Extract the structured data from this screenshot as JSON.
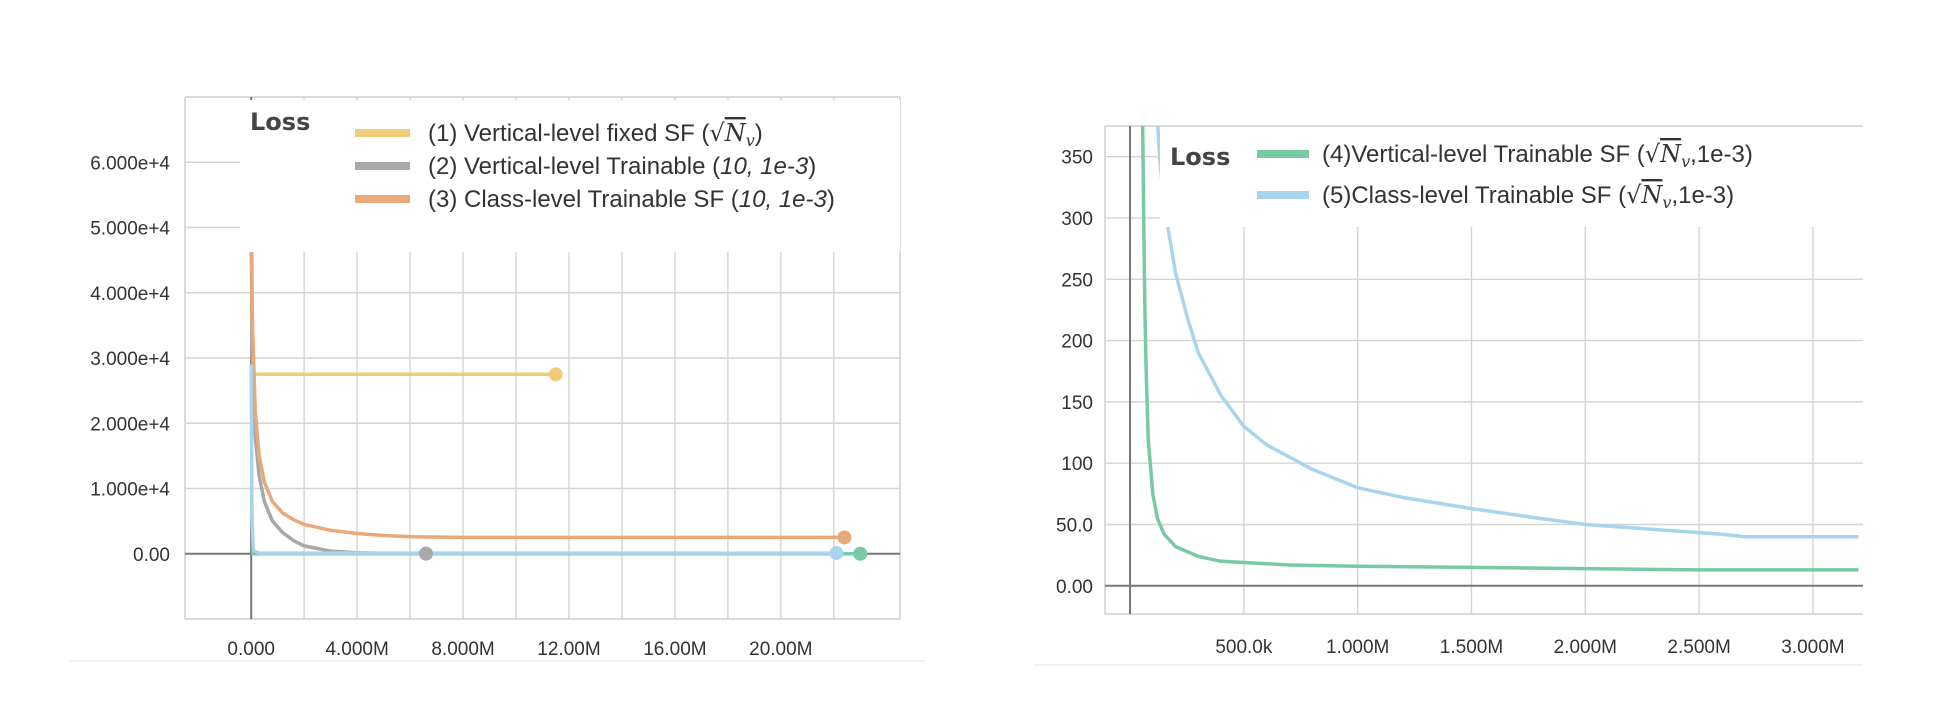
{
  "chart_data": [
    {
      "type": "line",
      "title": "Loss",
      "xlabel": "",
      "ylabel": "",
      "xlim": [
        -2.5,
        24.5
      ],
      "ylim": [
        -10000,
        70000
      ],
      "x_ticks": [
        0,
        4,
        8,
        12,
        16,
        20
      ],
      "x_tick_labels": [
        "0.000",
        "4.000M",
        "8.000M",
        "12.00M",
        "16.00M",
        "20.00M"
      ],
      "y_ticks": [
        0,
        10000,
        20000,
        30000,
        40000,
        50000,
        60000
      ],
      "y_tick_labels": [
        "0.00",
        "1.000e+4",
        "2.000e+4",
        "3.000e+4",
        "4.000e+4",
        "5.000e+4",
        "6.000e+4"
      ],
      "grid": true,
      "legend_position": "top-right",
      "series": [
        {
          "name": "(1) Vertical-level fixed SF (√N_v)",
          "color": "#f0cc7a",
          "x": [
            0,
            0.02,
            0.1,
            11.5
          ],
          "y": [
            27500,
            28000,
            27500,
            27500
          ]
        },
        {
          "name": "(2) Vertical-level Trainable (10, 1e-3)",
          "color": "#a8a8a8",
          "x": [
            0,
            0.05,
            0.15,
            0.3,
            0.5,
            0.8,
            1.2,
            1.6,
            2.0,
            3.0,
            4.0,
            5.0,
            6.6
          ],
          "y": [
            48000,
            30000,
            18000,
            12000,
            8000,
            5000,
            3200,
            2000,
            1200,
            400,
            150,
            60,
            20
          ]
        },
        {
          "name": "(3) Class-level Trainable SF (10, 1e-3)",
          "color": "#e8a878",
          "x": [
            0,
            0.05,
            0.15,
            0.3,
            0.5,
            0.8,
            1.2,
            1.6,
            2.0,
            3.0,
            4.0,
            5.0,
            6.0,
            8.0,
            12.0,
            16.0,
            20.0,
            22.4
          ],
          "y": [
            53000,
            35000,
            22000,
            15000,
            11000,
            8000,
            6200,
            5200,
            4500,
            3600,
            3100,
            2800,
            2600,
            2500,
            2500,
            2500,
            2500,
            2500
          ]
        },
        {
          "name": "(4) Vertical-level Trainable SF (√N_v, 1e-3)",
          "color": "#79c9a4",
          "x": [
            0,
            23.0
          ],
          "y": [
            0,
            0
          ]
        },
        {
          "name": "(5) Class-level Trainable SF (√N_v, 1e-3)",
          "color": "#a9d4ee",
          "x": [
            0,
            0.03,
            0.08,
            0.3,
            22.1
          ],
          "y": [
            29000,
            6000,
            500,
            100,
            100
          ]
        }
      ],
      "legend": [
        {
          "prefix": "(1) Vertical-level fixed SF (",
          "math": "N",
          "sub": "v",
          "suffix": ")",
          "color": "#f0cc7a"
        },
        {
          "prefix": "(2) Vertical-level Trainable (",
          "math": "10, 1e-3",
          "sub": "",
          "suffix": ")",
          "color": "#a8a8a8"
        },
        {
          "prefix": "(3) Class-level Trainable SF (",
          "math": "10, 1e-3",
          "sub": "",
          "suffix": ")",
          "color": "#e8a878"
        }
      ]
    },
    {
      "type": "line",
      "title": "Loss",
      "xlabel": "",
      "ylabel": "",
      "xlim": [
        -110,
        3220
      ],
      "ylim": [
        -23,
        375
      ],
      "x_ticks": [
        500,
        1000,
        1500,
        2000,
        2500,
        3000
      ],
      "x_tick_labels": [
        "500.0k",
        "1.000M",
        "1.500M",
        "2.000M",
        "2.500M",
        "3.000M"
      ],
      "y_ticks": [
        0,
        50,
        100,
        150,
        200,
        250,
        300,
        350
      ],
      "y_tick_labels": [
        "0.00",
        "50.0",
        "100",
        "150",
        "200",
        "250",
        "300",
        "350"
      ],
      "grid": true,
      "legend_position": "top",
      "series": [
        {
          "name": "(4)Vertical-level Trainable SF (√N_v, 1e-3)",
          "color": "#79c9a4",
          "x": [
            55,
            60,
            65,
            70,
            80,
            100,
            120,
            150,
            200,
            300,
            400,
            500,
            700,
            1000,
            1500,
            2000,
            2500,
            3000,
            3200
          ],
          "y": [
            380,
            300,
            230,
            180,
            120,
            75,
            55,
            42,
            32,
            24,
            20,
            19,
            17,
            16,
            15,
            14,
            13,
            13,
            13
          ]
        },
        {
          "name": "(5)Class-level Trainable SF (√N_v, 1e-3)",
          "color": "#a9d4ee",
          "x": [
            120,
            130,
            150,
            200,
            250,
            300,
            400,
            500,
            600,
            800,
            1000,
            1200,
            1500,
            1800,
            2000,
            2300,
            2600,
            2700,
            3200
          ],
          "y": [
            380,
            350,
            310,
            255,
            220,
            190,
            155,
            130,
            115,
            95,
            80,
            72,
            63,
            55,
            50,
            46,
            42,
            40,
            40
          ]
        }
      ],
      "legend": [
        {
          "prefix": "(4)Vertical-level Trainable SF (",
          "math": "N",
          "sub": "v",
          "suffix": ",1e-3)",
          "color": "#79c9a4"
        },
        {
          "prefix": "(5)Class-level Trainable SF (",
          "math": "N",
          "sub": "v",
          "suffix": ",1e-3)",
          "color": "#a9d4ee"
        }
      ]
    }
  ]
}
